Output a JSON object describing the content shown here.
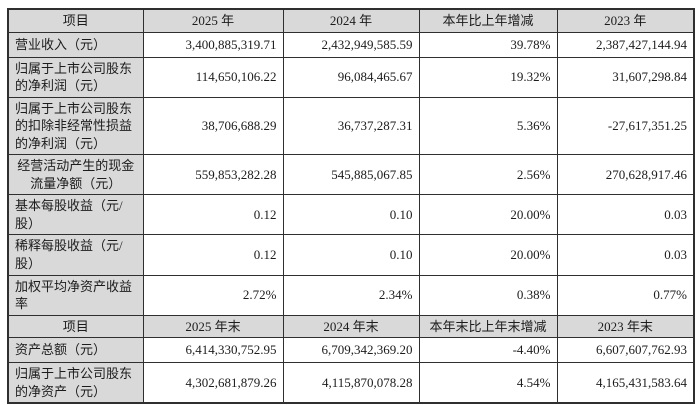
{
  "annual": {
    "header": [
      "项目",
      "2025 年",
      "2024 年",
      "本年比上年增减",
      "2023 年"
    ],
    "rows": [
      {
        "label": "营业收入（元）",
        "v2025": "3,400,885,319.71",
        "v2024": "2,432,949,585.59",
        "chg": "39.78%",
        "v2023": "2,387,427,144.94"
      },
      {
        "label": "归属于上市公司股东的净利润（元）",
        "v2025": "114,650,106.22",
        "v2024": "96,084,465.67",
        "chg": "19.32%",
        "v2023": "31,607,298.84"
      },
      {
        "label": "归属于上市公司股东的扣除非经常性损益的净利润（元）",
        "v2025": "38,706,688.29",
        "v2024": "36,737,287.31",
        "chg": "5.36%",
        "v2023": "-27,617,351.25"
      },
      {
        "label": "经营活动产生的现金流量净额（元）",
        "v2025": "559,853,282.28",
        "v2024": "545,885,067.85",
        "chg": "2.56%",
        "v2023": "270,628,917.46"
      },
      {
        "label": "基本每股收益（元/股）",
        "v2025": "0.12",
        "v2024": "0.10",
        "chg": "20.00%",
        "v2023": "0.03"
      },
      {
        "label": "稀释每股收益（元/股）",
        "v2025": "0.12",
        "v2024": "0.10",
        "chg": "20.00%",
        "v2023": "0.03"
      },
      {
        "label": "加权平均净资产收益率",
        "v2025": "2.72%",
        "v2024": "2.34%",
        "chg": "0.38%",
        "v2023": "0.77%"
      }
    ]
  },
  "period_end": {
    "header": [
      "项目",
      "2025 年末",
      "2024 年末",
      "本年末比上年末增减",
      "2023 年末"
    ],
    "rows": [
      {
        "label": "资产总额（元）",
        "v2025": "6,414,330,752.95",
        "v2024": "6,709,342,369.20",
        "chg": "-4.40%",
        "v2023": "6,607,607,762.93"
      },
      {
        "label": "归属于上市公司股东的净资产（元）",
        "v2025": "4,302,681,879.26",
        "v2024": "4,115,870,078.28",
        "chg": "4.54%",
        "v2023": "4,165,431,583.64"
      }
    ]
  },
  "colors": {
    "header_bg": "#d9d9d9",
    "label_bg": "#d9d9d9",
    "cell_bg": "#ffffff",
    "border": "#2f2f2f",
    "text": "#1c1c1c"
  }
}
